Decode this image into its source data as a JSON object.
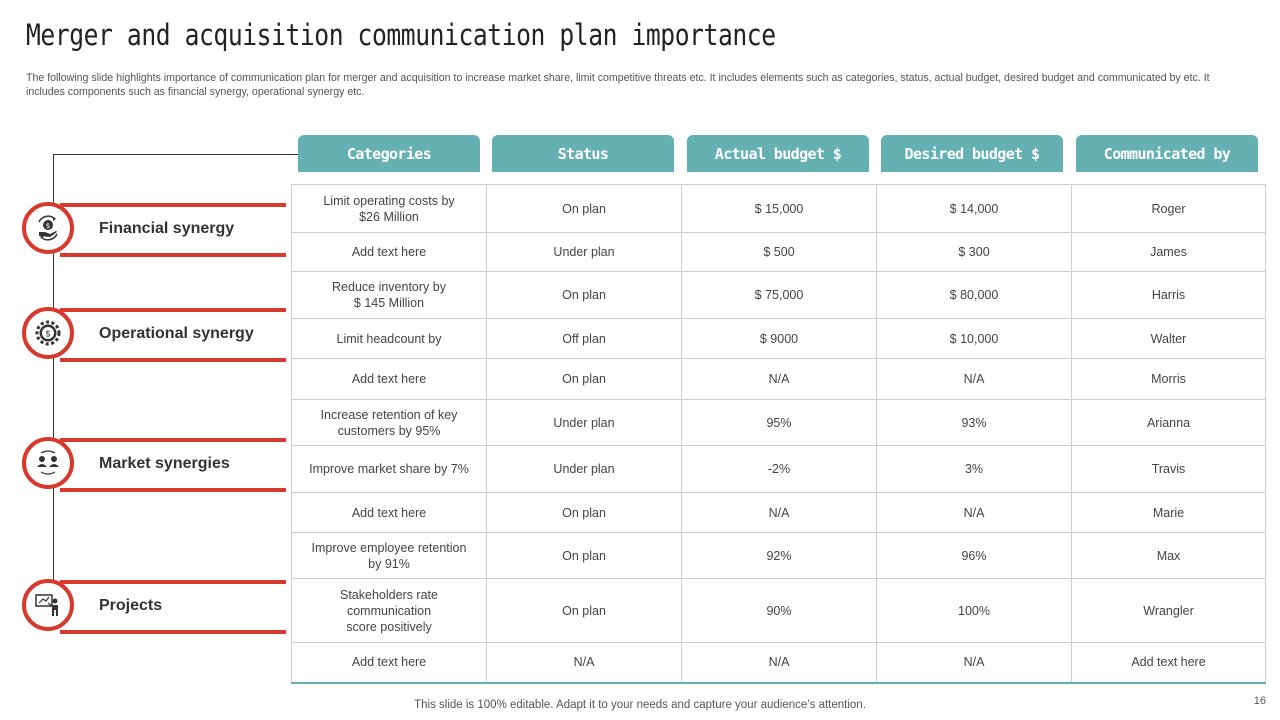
{
  "title": "Merger and acquisition communication plan importance",
  "subtitle": "The following slide highlights importance of communication plan for merger and acquisition to increase market share, limit competitive threats etc. It includes elements such as categories, status, actual budget, desired budget and communicated by etc. It includes components such as financial synergy, operational synergy etc.",
  "headers": [
    "Categories",
    "Status",
    "Actual budget $",
    "Desired budget $",
    "Communicated by"
  ],
  "categories": [
    {
      "label": "Financial synergy",
      "icon": "money-hand-icon"
    },
    {
      "label": "Operational synergy",
      "icon": "dollar-gear-icon"
    },
    {
      "label": "Market synergies",
      "icon": "people-exchange-icon"
    },
    {
      "label": "Projects",
      "icon": "presentation-icon"
    }
  ],
  "rows": [
    [
      "Limit operating costs by\n$26 Million",
      "On plan",
      "$ 15,000",
      "$ 14,000",
      "Roger"
    ],
    [
      "Add text here",
      "Under  plan",
      "$ 500",
      "$ 300",
      "James"
    ],
    [
      "Reduce inventory  by\n$ 145 Million",
      "On plan",
      "$ 75,000",
      "$ 80,000",
      "Harris"
    ],
    [
      "Limit headcount  by",
      "Off plan",
      "$ 9000",
      "$ 10,000",
      "Walter"
    ],
    [
      "Add text here",
      "On plan",
      "N/A",
      "N/A",
      "Morris"
    ],
    [
      "Increase retention  of key\ncustomers by 95%",
      "Under  plan",
      "95%",
      "93%",
      "Arianna"
    ],
    [
      "Improve  market share  by 7%",
      "Under  plan",
      "-2%",
      "3%",
      "Travis"
    ],
    [
      "Add text here",
      "On plan",
      "N/A",
      "N/A",
      "Marie"
    ],
    [
      "Improve  employee retention\nby 91%",
      "On plan",
      "92%",
      "96%",
      "Max"
    ],
    [
      "Stakeholders rate\ncommunication\nscore positively",
      "On plan",
      "90%",
      "100%",
      "Wrangler"
    ],
    [
      "Add text here",
      "N/A",
      "N/A",
      "N/A",
      "Add text here"
    ]
  ],
  "footer": "This slide is 100% editable. Adapt it to your needs and capture your audience’s attention.",
  "page_number": "16",
  "colors": {
    "accent": "#d7392d",
    "header": "#65b0b3"
  }
}
